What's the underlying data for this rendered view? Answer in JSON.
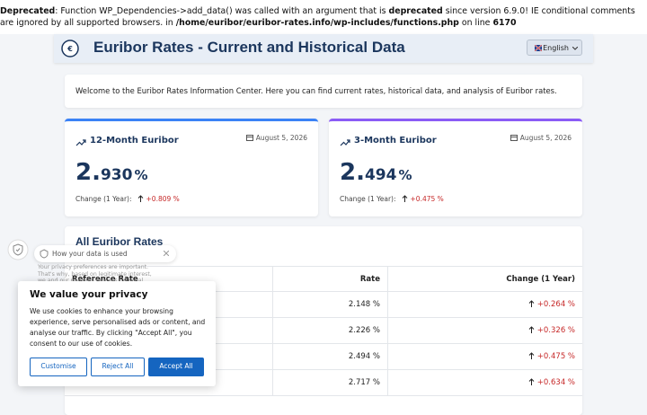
{
  "notice": {
    "segments": [
      {
        "text": "Deprecated",
        "bold": true
      },
      {
        "text": ": Function WP_Dependencies->add_data() was called with an argument that is ",
        "bold": false
      },
      {
        "text": "deprecated",
        "bold": true
      },
      {
        "text": " since version 6.9.0! IE conditional comments are ignored by all supported browsers. in ",
        "bold": false
      },
      {
        "text": "/home/euribor/euribor-rates.info/wp-includes/functions.php",
        "bold": true
      },
      {
        "text": " on line ",
        "bold": false
      },
      {
        "text": "6170",
        "bold": true
      }
    ]
  },
  "header": {
    "title": "Euribor Rates - Current and Historical Data",
    "language": "English"
  },
  "welcome": "Welcome to the Euribor Rates Information Center. Here you can find current rates, historical data, and analysis of Euribor rates.",
  "cards": [
    {
      "title": "12-Month Euribor",
      "date": "August 5, 2026",
      "rate_int": "2.",
      "rate_dec": "930",
      "unit": "%",
      "change_label": "Change (1 Year):",
      "change": "+0.809 %"
    },
    {
      "title": "3-Month Euribor",
      "date": "August 5, 2026",
      "rate_int": "2.",
      "rate_dec": "494",
      "unit": "%",
      "change_label": "Change (1 Year):",
      "change": "+0.475 %"
    }
  ],
  "table": {
    "title": "All Euribor Rates",
    "headers": [
      "Reference Rate",
      "Rate",
      "Change (1 Year)"
    ],
    "rows": [
      {
        "rate": "2.148 %",
        "change": "+0.264 %"
      },
      {
        "rate": "2.226 %",
        "change": "+0.326 %"
      },
      {
        "rate": "2.494 %",
        "change": "+0.475 %"
      },
      {
        "rate": "2.717 %",
        "change": "+0.634 %"
      }
    ]
  },
  "privacy_popup": {
    "title": "How your data is used",
    "text": "Your privacy preferences are important. That's why, based on legitimate interest, we and our partners process personal data such as your device type and content service"
  },
  "cookie_banner": {
    "title": "We value your privacy",
    "text": "We use cookies to enhance your browsing experience, serve personalised ads or content, and analyse our traffic. By clicking \"Accept All\", you consent to our use of cookies.",
    "buttons": [
      "Customise",
      "Reject All",
      "Accept All"
    ]
  }
}
